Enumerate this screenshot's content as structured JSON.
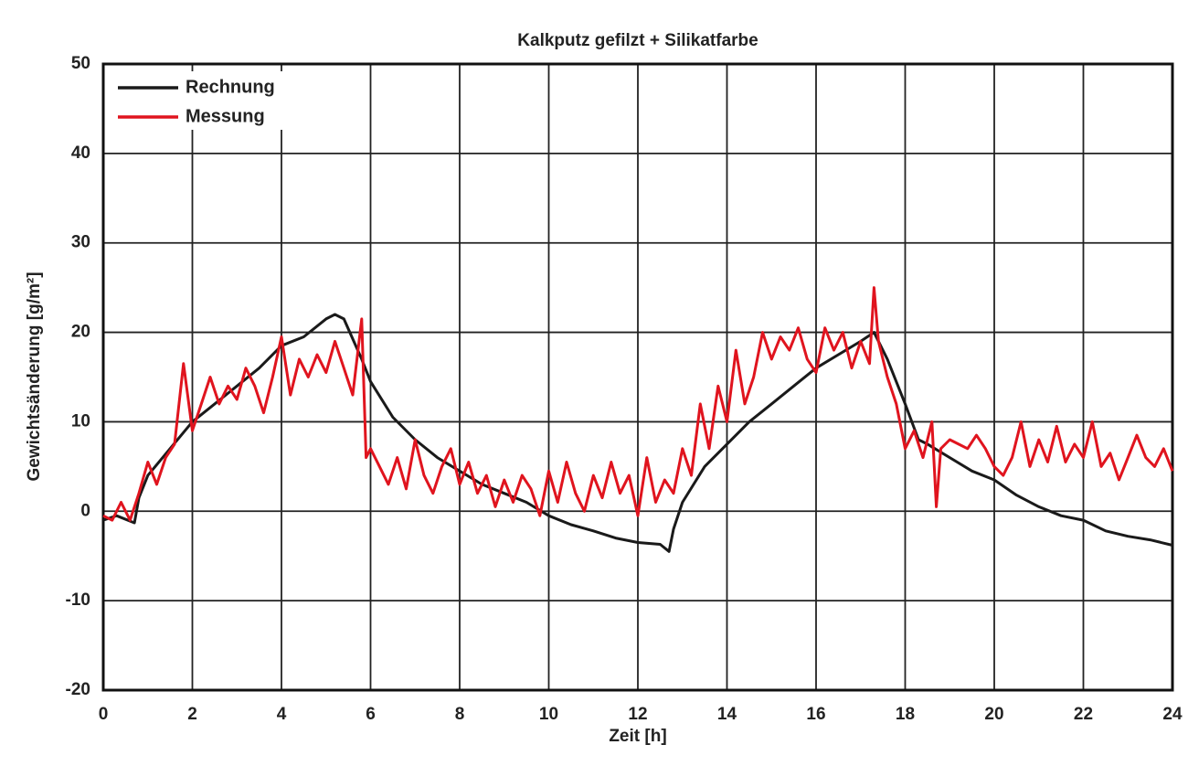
{
  "chart_data": {
    "type": "line",
    "title": "Kalkputz gefilzt + Silikatfarbe",
    "xlabel": "Zeit [h]",
    "ylabel": "Gewichtsänderung [g/m²]",
    "xlim": [
      0,
      24
    ],
    "ylim": [
      -20,
      50
    ],
    "xticks": [
      0,
      2,
      4,
      6,
      8,
      10,
      12,
      14,
      16,
      18,
      20,
      22,
      24
    ],
    "yticks": [
      -20,
      -10,
      0,
      10,
      20,
      30,
      40,
      50
    ],
    "grid": true,
    "legend": "upper left",
    "series": [
      {
        "name": "Rechnung",
        "color": "#1a1a1a",
        "x": [
          0,
          0.3,
          0.7,
          0.8,
          1,
          1.5,
          2,
          2.5,
          3,
          3.5,
          4,
          4.5,
          5,
          5.2,
          5.4,
          5.8,
          6,
          6.5,
          7,
          7.5,
          8,
          8.5,
          9,
          9.5,
          10,
          10.5,
          11,
          11.5,
          12,
          12.5,
          12.7,
          12.8,
          13,
          13.5,
          14,
          14.5,
          15,
          15.5,
          16,
          16.5,
          17,
          17.3,
          17.6,
          18,
          18.3,
          18.5,
          19,
          19.5,
          20,
          20.5,
          21,
          21.5,
          22,
          22.5,
          23,
          23.5,
          24
        ],
        "values": [
          -1,
          -0.5,
          -1.3,
          1.5,
          4,
          7,
          10,
          12,
          14,
          16,
          18.5,
          19.5,
          21.5,
          22,
          21.5,
          17,
          14.5,
          10.5,
          8,
          6,
          4.5,
          3,
          2,
          1,
          -0.5,
          -1.5,
          -2.2,
          -3,
          -3.5,
          -3.7,
          -4.5,
          -2,
          1,
          5,
          7.5,
          10,
          12,
          14,
          16,
          17.5,
          19,
          20,
          17,
          12,
          8,
          7.5,
          6,
          4.5,
          3.5,
          1.8,
          0.5,
          -0.5,
          -1,
          -2.2,
          -2.8,
          -3.2,
          -3.8
        ]
      },
      {
        "name": "Messung",
        "color": "#e0141e",
        "x": [
          0,
          0.2,
          0.4,
          0.6,
          0.8,
          1.0,
          1.2,
          1.4,
          1.6,
          1.8,
          2.0,
          2.2,
          2.4,
          2.6,
          2.8,
          3.0,
          3.2,
          3.4,
          3.6,
          3.8,
          4.0,
          4.2,
          4.4,
          4.6,
          4.8,
          5.0,
          5.2,
          5.4,
          5.6,
          5.8,
          5.9,
          6.0,
          6.2,
          6.4,
          6.6,
          6.8,
          7.0,
          7.2,
          7.4,
          7.6,
          7.8,
          8.0,
          8.2,
          8.4,
          8.6,
          8.8,
          9.0,
          9.2,
          9.4,
          9.6,
          9.8,
          10.0,
          10.2,
          10.4,
          10.6,
          10.8,
          11.0,
          11.2,
          11.4,
          11.6,
          11.8,
          12.0,
          12.2,
          12.4,
          12.6,
          12.8,
          13.0,
          13.2,
          13.4,
          13.6,
          13.8,
          14.0,
          14.2,
          14.4,
          14.6,
          14.8,
          15.0,
          15.2,
          15.4,
          15.6,
          15.8,
          16.0,
          16.2,
          16.4,
          16.6,
          16.8,
          17.0,
          17.2,
          17.3,
          17.4,
          17.6,
          17.8,
          18.0,
          18.2,
          18.4,
          18.6,
          18.7,
          18.8,
          19.0,
          19.2,
          19.4,
          19.6,
          19.8,
          20.0,
          20.2,
          20.4,
          20.6,
          20.8,
          21.0,
          21.2,
          21.4,
          21.6,
          21.8,
          22.0,
          22.2,
          22.4,
          22.6,
          22.8,
          23.0,
          23.2,
          23.4,
          23.6,
          23.8,
          24.0
        ],
        "values": [
          -0.5,
          -1,
          1,
          -1,
          2,
          5.5,
          3,
          6,
          7.5,
          16.5,
          9,
          12,
          15,
          12,
          14,
          12.5,
          16,
          14,
          11,
          15,
          19.5,
          13,
          17,
          15,
          17.5,
          15.5,
          19,
          16,
          13,
          21.5,
          6,
          7,
          5,
          3,
          6,
          2.5,
          8,
          4,
          2,
          5,
          7,
          3,
          5.5,
          2,
          4,
          0.5,
          3.5,
          1,
          4,
          2.5,
          -0.5,
          4.5,
          1,
          5.5,
          2,
          0,
          4,
          1.5,
          5.5,
          2,
          4,
          -0.5,
          6,
          1,
          3.5,
          2,
          7,
          4,
          12,
          7,
          14,
          10,
          18,
          12,
          15,
          20,
          17,
          19.5,
          18,
          20.5,
          17,
          15.5,
          20.5,
          18,
          20,
          16,
          19,
          16.5,
          25,
          19,
          15,
          12,
          7,
          9,
          6,
          10,
          0.5,
          7,
          8,
          7.5,
          7,
          8.5,
          7,
          5,
          4,
          6,
          10,
          5,
          8,
          5.5,
          9.5,
          5.5,
          7.5,
          6,
          10,
          5,
          6.5,
          3.5,
          6,
          8.5,
          6,
          5,
          7,
          4.5
        ]
      }
    ]
  }
}
